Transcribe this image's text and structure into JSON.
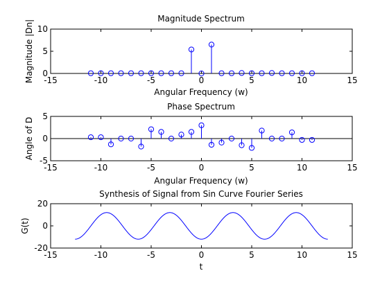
{
  "colors": {
    "background": "#ffffff",
    "axes": "#000000",
    "series": "#0000ff"
  },
  "chart_data": [
    {
      "type": "scatter",
      "style": "stem",
      "title": "Magnitude Spectrum",
      "xlabel": "Angular Frequency (w)",
      "ylabel": "Magnitude |Dn|",
      "xlim": [
        -15,
        15
      ],
      "ylim": [
        0,
        10
      ],
      "xticks": [
        -15,
        -10,
        -5,
        0,
        5,
        10,
        15
      ],
      "yticks": [
        0,
        5,
        10
      ],
      "baseline": true,
      "grid": false,
      "x": [
        -11,
        -10,
        -9,
        -8,
        -7,
        -6,
        -5,
        -4,
        -3,
        -2,
        -1,
        0,
        1,
        2,
        3,
        4,
        5,
        6,
        7,
        8,
        9,
        10,
        11
      ],
      "y": [
        0.05,
        0.05,
        0.05,
        0.05,
        0.05,
        0.05,
        0.05,
        0.05,
        0.05,
        0.05,
        5.4,
        0,
        6.5,
        0.05,
        0.05,
        0.1,
        0.05,
        0.05,
        0.1,
        0.05,
        0.05,
        0.05,
        0.05
      ]
    },
    {
      "type": "scatter",
      "style": "stem",
      "title": "Phase Spectrum",
      "xlabel": "Angular Frequency (w)",
      "ylabel": "Angle of D",
      "xlim": [
        -15,
        15
      ],
      "ylim": [
        -5,
        5
      ],
      "xticks": [
        -15,
        -10,
        -5,
        0,
        5,
        10,
        15
      ],
      "yticks": [
        -5,
        0,
        5
      ],
      "baseline": true,
      "grid": false,
      "x": [
        -11,
        -10,
        -9,
        -8,
        -7,
        -6,
        -5,
        -4,
        -3,
        -2,
        -1,
        0,
        1,
        2,
        3,
        4,
        5,
        6,
        7,
        8,
        9,
        10,
        11
      ],
      "y": [
        0.3,
        0.3,
        -1.3,
        0,
        0,
        -1.8,
        2.1,
        1.5,
        0,
        0.9,
        1.5,
        3.0,
        -1.4,
        -0.9,
        0,
        -1.5,
        -2.1,
        1.8,
        0,
        0,
        1.4,
        -0.3,
        -0.3
      ]
    },
    {
      "type": "line",
      "title": "Synthesis of Signal from Sin Curve Fourier Series",
      "xlabel": "t",
      "ylabel": "G(t)",
      "xlim": [
        -15,
        15
      ],
      "ylim": [
        -20,
        20
      ],
      "xticks": [
        -15,
        -10,
        -5,
        0,
        5,
        10,
        15
      ],
      "yticks": [
        -20,
        0,
        20
      ],
      "grid": false,
      "series": [
        {
          "amplitude": 12,
          "period": 6.2832,
          "phase": -1.5708,
          "t_range": [
            -12.5664,
            12.5664
          ]
        }
      ]
    }
  ]
}
